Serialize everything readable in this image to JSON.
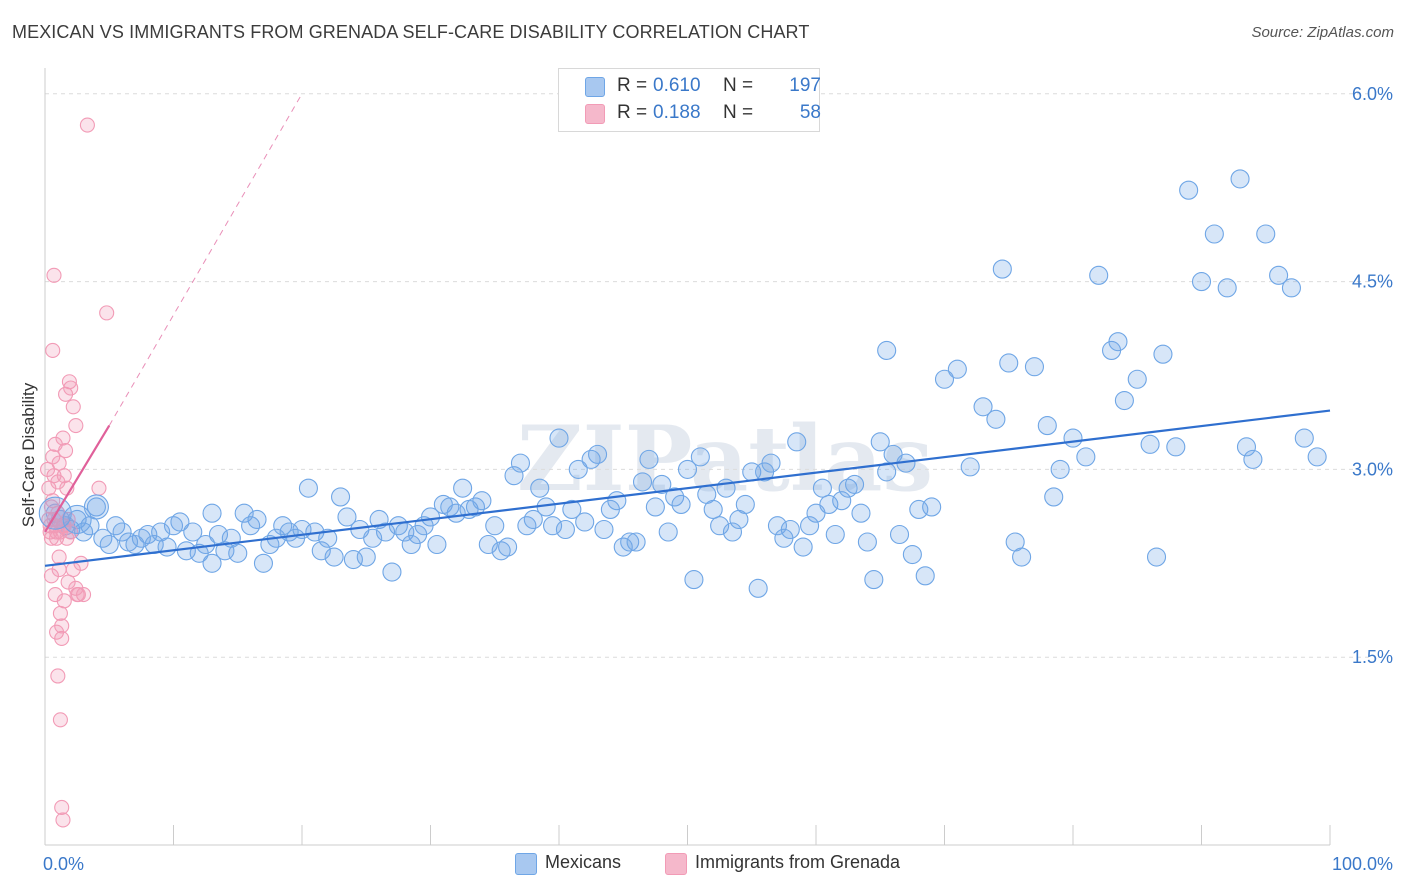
{
  "title": "MEXICAN VS IMMIGRANTS FROM GRENADA SELF-CARE DISABILITY CORRELATION CHART",
  "source": "Source: ZipAtlas.com",
  "watermark": "ZIPatlas",
  "legend_top": [
    {
      "r_label": "R =",
      "r_value": "0.610",
      "n_label": "N =",
      "n_value": "197",
      "color": "#a8c8f0"
    },
    {
      "r_label": "R =",
      "r_value": "0.188",
      "n_label": "N =",
      "n_value": "58",
      "color": "#f5b8cb"
    }
  ],
  "legend_bottom": [
    {
      "label": "Mexicans",
      "color": "#a8c8f0"
    },
    {
      "label": "Immigrants from Grenada",
      "color": "#f5b8cb"
    }
  ],
  "chart_data": {
    "type": "scatter",
    "title": "MEXICAN VS IMMIGRANTS FROM GRENADA SELF-CARE DISABILITY CORRELATION CHART",
    "ylabel": "Self-Care Disability",
    "xlabel": "",
    "x_tick_labels": [
      "0.0%",
      "100.0%"
    ],
    "y_tick_labels": [
      "1.5%",
      "3.0%",
      "4.5%",
      "6.0%"
    ],
    "y_ticks": [
      1.5,
      3.0,
      4.5,
      6.0
    ],
    "xlim": [
      0,
      100
    ],
    "ylim": [
      0,
      6.15
    ],
    "grid": "horizontal-dashed",
    "legend_placement": "top-center",
    "series": [
      {
        "name": "Mexicans",
        "color": "#6fa6e6",
        "trend": {
          "x": [
            0,
            100
          ],
          "y": [
            2.23,
            3.47
          ],
          "color": "#2f6fcf"
        },
        "points": [
          [
            0.8,
            2.65
          ],
          [
            1.2,
            2.6
          ],
          [
            1.6,
            2.55
          ],
          [
            2.0,
            2.52
          ],
          [
            2.5,
            2.6
          ],
          [
            3.0,
            2.5
          ],
          [
            3.5,
            2.55
          ],
          [
            4.0,
            2.7
          ],
          [
            4.5,
            2.45
          ],
          [
            5.0,
            2.4
          ],
          [
            5.5,
            2.55
          ],
          [
            6.0,
            2.5
          ],
          [
            6.5,
            2.42
          ],
          [
            7.0,
            2.4
          ],
          [
            7.5,
            2.45
          ],
          [
            8.0,
            2.48
          ],
          [
            8.5,
            2.4
          ],
          [
            9.0,
            2.5
          ],
          [
            9.5,
            2.38
          ],
          [
            10.0,
            2.55
          ],
          [
            10.5,
            2.58
          ],
          [
            11.0,
            2.35
          ],
          [
            11.5,
            2.5
          ],
          [
            12.0,
            2.33
          ],
          [
            12.5,
            2.4
          ],
          [
            13.0,
            2.25
          ],
          [
            13.5,
            2.48
          ],
          [
            13.0,
            2.65
          ],
          [
            14.0,
            2.35
          ],
          [
            14.5,
            2.45
          ],
          [
            15.0,
            2.33
          ],
          [
            15.5,
            2.65
          ],
          [
            16.0,
            2.55
          ],
          [
            16.5,
            2.6
          ],
          [
            17.0,
            2.25
          ],
          [
            17.5,
            2.4
          ],
          [
            18.0,
            2.45
          ],
          [
            18.5,
            2.55
          ],
          [
            19.0,
            2.5
          ],
          [
            19.5,
            2.45
          ],
          [
            20.0,
            2.52
          ],
          [
            20.5,
            2.85
          ],
          [
            21.0,
            2.5
          ],
          [
            21.5,
            2.35
          ],
          [
            22.0,
            2.45
          ],
          [
            22.5,
            2.3
          ],
          [
            23.0,
            2.78
          ],
          [
            23.5,
            2.62
          ],
          [
            24.0,
            2.28
          ],
          [
            24.5,
            2.52
          ],
          [
            25.0,
            2.3
          ],
          [
            25.5,
            2.45
          ],
          [
            26.0,
            2.6
          ],
          [
            26.5,
            2.5
          ],
          [
            27.0,
            2.18
          ],
          [
            27.5,
            2.55
          ],
          [
            28.0,
            2.5
          ],
          [
            28.5,
            2.4
          ],
          [
            29.0,
            2.48
          ],
          [
            29.5,
            2.55
          ],
          [
            30.0,
            2.62
          ],
          [
            30.5,
            2.4
          ],
          [
            31.0,
            2.72
          ],
          [
            31.5,
            2.7
          ],
          [
            32.0,
            2.65
          ],
          [
            32.5,
            2.85
          ],
          [
            33.0,
            2.68
          ],
          [
            33.5,
            2.7
          ],
          [
            34.0,
            2.75
          ],
          [
            34.5,
            2.4
          ],
          [
            35.0,
            2.55
          ],
          [
            35.5,
            2.35
          ],
          [
            36.0,
            2.38
          ],
          [
            36.5,
            2.95
          ],
          [
            37.0,
            3.05
          ],
          [
            37.5,
            2.55
          ],
          [
            38.0,
            2.6
          ],
          [
            38.5,
            2.85
          ],
          [
            39.0,
            2.7
          ],
          [
            39.5,
            2.55
          ],
          [
            40.0,
            3.25
          ],
          [
            40.5,
            2.52
          ],
          [
            41.0,
            2.68
          ],
          [
            41.5,
            3.0
          ],
          [
            42.0,
            2.58
          ],
          [
            42.5,
            3.08
          ],
          [
            43.0,
            3.12
          ],
          [
            43.5,
            2.52
          ],
          [
            44.0,
            2.68
          ],
          [
            44.5,
            2.75
          ],
          [
            45.0,
            2.38
          ],
          [
            45.5,
            2.42
          ],
          [
            46.0,
            2.42
          ],
          [
            46.5,
            2.9
          ],
          [
            47.0,
            3.08
          ],
          [
            47.5,
            2.7
          ],
          [
            48.0,
            2.88
          ],
          [
            48.5,
            2.5
          ],
          [
            49.0,
            2.78
          ],
          [
            49.5,
            2.72
          ],
          [
            50.0,
            3.0
          ],
          [
            50.5,
            2.12
          ],
          [
            51.0,
            3.1
          ],
          [
            51.5,
            2.8
          ],
          [
            52.0,
            2.68
          ],
          [
            52.5,
            2.55
          ],
          [
            53.0,
            2.85
          ],
          [
            53.5,
            2.5
          ],
          [
            54.0,
            2.6
          ],
          [
            54.5,
            2.72
          ],
          [
            55.0,
            2.98
          ],
          [
            55.5,
            2.05
          ],
          [
            56.0,
            2.98
          ],
          [
            56.5,
            3.05
          ],
          [
            57.0,
            2.55
          ],
          [
            57.5,
            2.45
          ],
          [
            58.0,
            2.52
          ],
          [
            58.5,
            3.22
          ],
          [
            59.0,
            2.38
          ],
          [
            59.5,
            2.55
          ],
          [
            60.0,
            2.65
          ],
          [
            60.5,
            2.85
          ],
          [
            61.0,
            2.72
          ],
          [
            61.5,
            2.48
          ],
          [
            62.0,
            2.75
          ],
          [
            62.5,
            2.85
          ],
          [
            63.0,
            2.88
          ],
          [
            63.5,
            2.65
          ],
          [
            64.0,
            2.42
          ],
          [
            64.5,
            2.12
          ],
          [
            65.0,
            3.22
          ],
          [
            65.5,
            2.98
          ],
          [
            66.0,
            3.12
          ],
          [
            66.5,
            2.48
          ],
          [
            67.0,
            3.05
          ],
          [
            67.5,
            2.32
          ],
          [
            68.0,
            2.68
          ],
          [
            68.5,
            2.15
          ],
          [
            69.0,
            2.7
          ],
          [
            70.0,
            3.72
          ],
          [
            71.0,
            3.8
          ],
          [
            72.0,
            3.02
          ],
          [
            73.0,
            3.5
          ],
          [
            74.0,
            3.4
          ],
          [
            75.0,
            3.85
          ],
          [
            76.0,
            2.3
          ],
          [
            77.0,
            3.82
          ],
          [
            78.0,
            3.35
          ],
          [
            78.5,
            2.78
          ],
          [
            79.0,
            3.0
          ],
          [
            80.0,
            3.25
          ],
          [
            81.0,
            3.1
          ],
          [
            82.0,
            4.55
          ],
          [
            83.0,
            3.95
          ],
          [
            84.0,
            3.55
          ],
          [
            85.0,
            3.72
          ],
          [
            86.0,
            3.2
          ],
          [
            87.0,
            3.92
          ],
          [
            88.0,
            3.18
          ],
          [
            89.0,
            5.23
          ],
          [
            90.0,
            4.5
          ],
          [
            91.0,
            4.88
          ],
          [
            92.0,
            4.45
          ],
          [
            93.0,
            5.32
          ],
          [
            94.0,
            3.08
          ],
          [
            95.0,
            4.88
          ],
          [
            96.0,
            4.55
          ],
          [
            97.0,
            4.45
          ],
          [
            98.0,
            3.25
          ],
          [
            99.0,
            3.1
          ],
          [
            74.5,
            4.6
          ],
          [
            86.5,
            2.3
          ],
          [
            75.5,
            2.42
          ],
          [
            65.5,
            3.95
          ],
          [
            83.5,
            4.02
          ],
          [
            93.5,
            3.18
          ]
        ]
      },
      {
        "name": "Immigrants from Grenada",
        "color": "#f29bb6",
        "trend": {
          "x": [
            0,
            5
          ],
          "y": [
            2.5,
            3.35
          ],
          "color": "#e0609a"
        },
        "trend_extension": {
          "x": [
            5,
            20
          ],
          "y": [
            3.35,
            6.0
          ]
        },
        "points": [
          [
            0.2,
            3.0
          ],
          [
            0.3,
            2.85
          ],
          [
            0.3,
            2.6
          ],
          [
            0.4,
            2.55
          ],
          [
            0.4,
            2.5
          ],
          [
            0.5,
            2.45
          ],
          [
            0.5,
            2.7
          ],
          [
            0.6,
            3.1
          ],
          [
            0.6,
            2.75
          ],
          [
            0.7,
            2.95
          ],
          [
            0.7,
            2.6
          ],
          [
            0.8,
            2.55
          ],
          [
            0.8,
            3.2
          ],
          [
            0.9,
            2.5
          ],
          [
            0.9,
            2.45
          ],
          [
            1.0,
            2.65
          ],
          [
            1.0,
            2.9
          ],
          [
            1.1,
            3.05
          ],
          [
            1.1,
            2.2
          ],
          [
            1.2,
            2.5
          ],
          [
            1.2,
            1.85
          ],
          [
            1.3,
            1.75
          ],
          [
            1.3,
            1.65
          ],
          [
            1.4,
            2.55
          ],
          [
            1.4,
            3.25
          ],
          [
            1.5,
            2.95
          ],
          [
            1.5,
            1.95
          ],
          [
            1.6,
            3.6
          ],
          [
            1.6,
            3.15
          ],
          [
            1.7,
            2.85
          ],
          [
            1.7,
            2.45
          ],
          [
            1.8,
            2.6
          ],
          [
            1.8,
            2.1
          ],
          [
            2.0,
            3.65
          ],
          [
            2.0,
            2.5
          ],
          [
            2.2,
            3.5
          ],
          [
            2.2,
            2.2
          ],
          [
            2.4,
            3.35
          ],
          [
            2.4,
            2.05
          ],
          [
            2.6,
            2.0
          ],
          [
            2.8,
            2.25
          ],
          [
            3.0,
            2.0
          ],
          [
            3.3,
            5.75
          ],
          [
            4.2,
            2.85
          ],
          [
            4.8,
            4.25
          ],
          [
            0.6,
            3.95
          ],
          [
            0.7,
            4.55
          ],
          [
            1.0,
            1.35
          ],
          [
            1.2,
            1.0
          ],
          [
            1.3,
            0.3
          ],
          [
            1.4,
            0.2
          ],
          [
            0.9,
            1.7
          ],
          [
            2.5,
            2.0
          ],
          [
            1.1,
            2.3
          ],
          [
            0.5,
            2.15
          ],
          [
            1.9,
            3.7
          ],
          [
            0.8,
            2.0
          ],
          [
            1.5,
            2.55
          ]
        ]
      }
    ]
  }
}
